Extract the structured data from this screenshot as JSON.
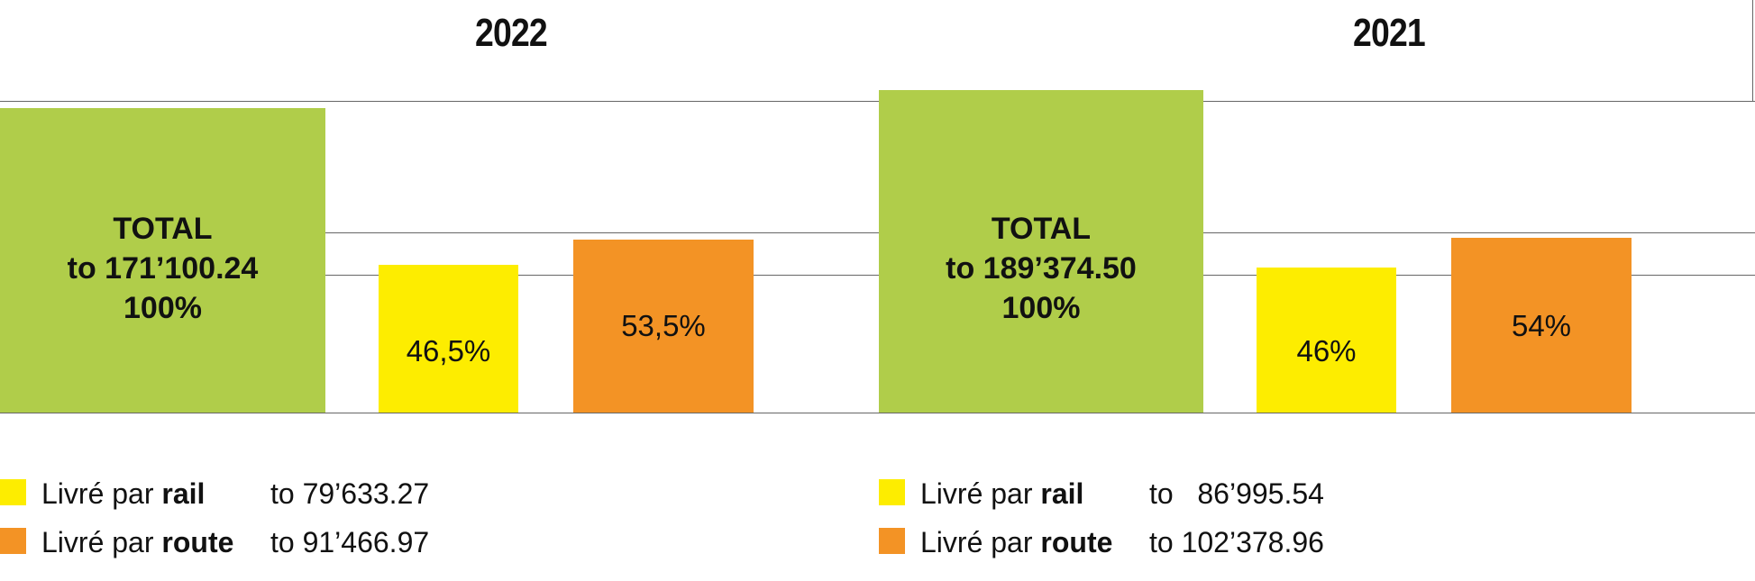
{
  "colors": {
    "total": "#b0cd4a",
    "rail": "#fded00",
    "route": "#f39325",
    "grid": "#666666"
  },
  "chart_data": [
    {
      "type": "bar",
      "title": "2022",
      "categories": [
        "TOTAL",
        "Livré par rail",
        "Livré par route"
      ],
      "values": [
        171100.24,
        79633.27,
        91466.97
      ],
      "percent": [
        100,
        46.5,
        53.5
      ],
      "labels": [
        [
          "TOTAL",
          "to 171’100.24",
          "100%"
        ],
        [
          "46,5%"
        ],
        [
          "53,5%"
        ]
      ],
      "legend": [
        {
          "prefix": "Livré par ",
          "bold": "rail",
          "value": "to 79’633.27"
        },
        {
          "prefix": "Livré par ",
          "bold": "route",
          "value": "to 91’466.97"
        }
      ]
    },
    {
      "type": "bar",
      "title": "2021",
      "categories": [
        "TOTAL",
        "Livré par rail",
        "Livré par route"
      ],
      "values": [
        189374.5,
        86995.54,
        102378.96
      ],
      "percent": [
        100,
        46,
        54
      ],
      "labels": [
        [
          "TOTAL",
          "to 189’374.50",
          "100%"
        ],
        [
          "46%"
        ],
        [
          "54%"
        ]
      ],
      "legend": [
        {
          "prefix": "Livré par ",
          "bold": "rail",
          "value": "to   86’995.54"
        },
        {
          "prefix": "Livré par ",
          "bold": "route",
          "value": "to 102’378.96"
        }
      ]
    }
  ]
}
